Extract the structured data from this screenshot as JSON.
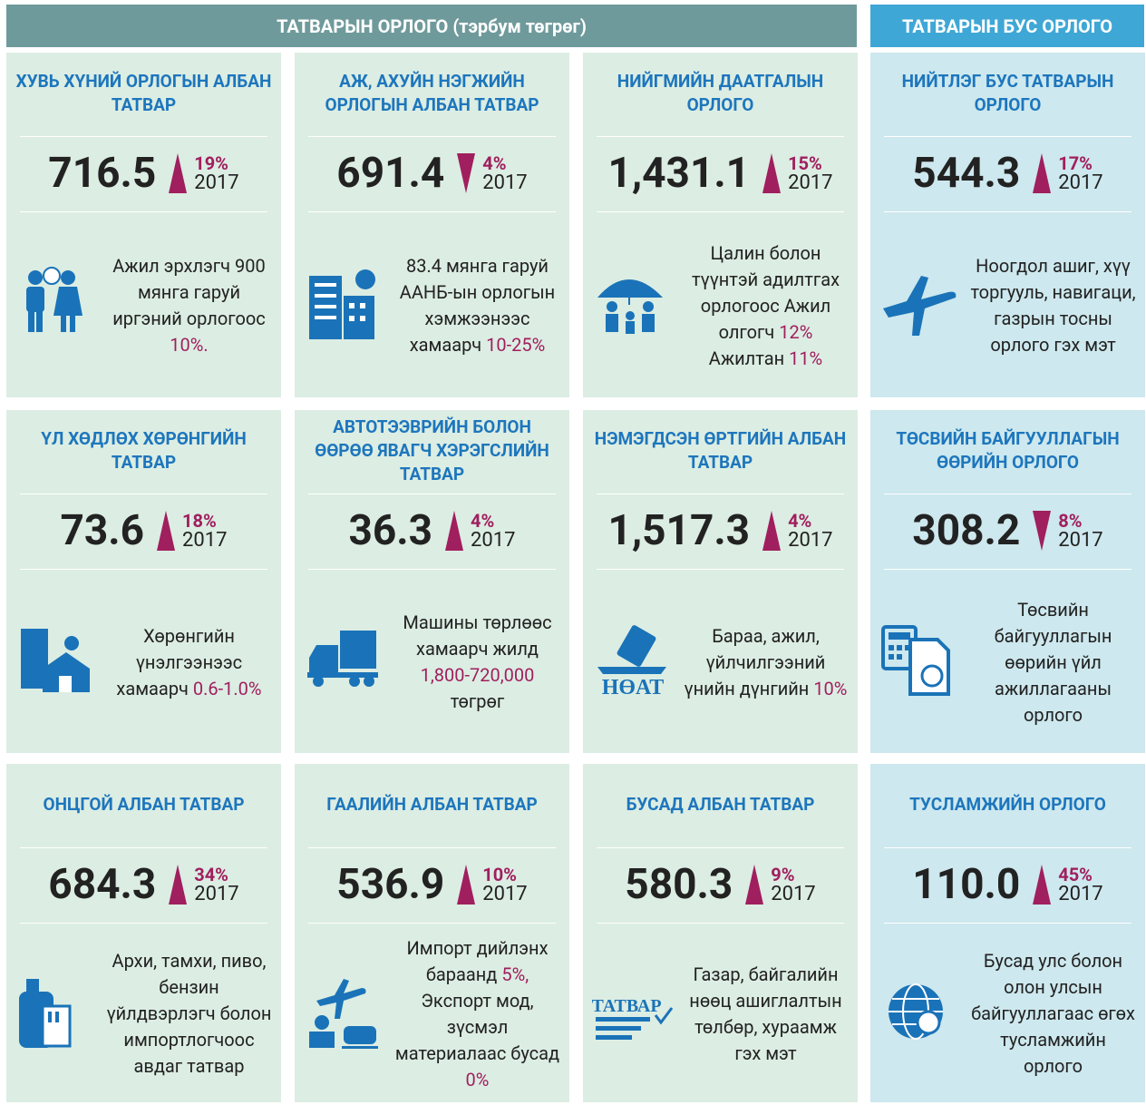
{
  "header": {
    "tax_title": "ТАТВАРЫН ОРЛОГО (тэрбум төгрөг)",
    "nontax_title": "ТАТВАРЫН БУС ОРЛОГО"
  },
  "cards": [
    {
      "title": "ХУВЬ ХҮНИЙ ОРЛОГЫН АЛБАН ТАТВАР",
      "value": "716.5",
      "direction": "up",
      "change": "19%",
      "year": "2017",
      "group": "tax",
      "icon": "people",
      "description": [
        {
          "text": "Ажил эрхлэгч 900 мянга гаруй иргэний орлогоос "
        },
        {
          "text": "10%.",
          "accent": true
        }
      ]
    },
    {
      "title": "АЖ, АХУЙН НЭГЖИЙН ОРЛОГЫН АЛБАН ТАТВАР",
      "value": "691.4",
      "direction": "down",
      "change": "4%",
      "year": "2017",
      "group": "tax",
      "icon": "building",
      "description": [
        {
          "text": "83.4 мянга гаруй ААНБ-ын орлогын хэмжээнээс хамаарч "
        },
        {
          "text": "10-25%",
          "accent": true
        }
      ]
    },
    {
      "title": "НИЙГМИЙН ДААТГАЛЫН ОРЛОГО",
      "value": "1,431.1",
      "direction": "up",
      "change": "15%",
      "year": "2017",
      "group": "tax",
      "icon": "umbrella",
      "description": [
        {
          "text": "Цалин болон түүнтэй адилтгах орлогоос Ажил олгогч "
        },
        {
          "text": "12%",
          "accent": true
        },
        {
          "text": " Ажилтан "
        },
        {
          "text": "11%",
          "accent": true
        }
      ]
    },
    {
      "title": "НИЙТЛЭГ БУС ТАТВАРЫН ОРЛОГО",
      "value": "544.3",
      "direction": "up",
      "change": "17%",
      "year": "2017",
      "group": "nontax",
      "icon": "plane",
      "description": [
        {
          "text": "Ноогдол ашиг, хүү торгууль, навигаци, газрын тосны орлого гэх мэт"
        }
      ]
    },
    {
      "title": "ҮЛ ХӨДЛӨХ ХӨРӨНГИЙН ТАТВАР",
      "value": "73.6",
      "direction": "up",
      "change": "18%",
      "year": "2017",
      "group": "tax",
      "icon": "house",
      "description": [
        {
          "text": "Хөрөнгийн үнэлгээнээс хамаарч "
        },
        {
          "text": "0.6-1.0%",
          "accent": true
        }
      ]
    },
    {
      "title": "АВТОТЭЭВРИЙН БОЛОН ӨӨРӨӨ ЯВАГЧ ХЭРЭГСЛИЙН ТАТВАР",
      "value": "36.3",
      "direction": "up",
      "change": "4%",
      "year": "2017",
      "group": "tax",
      "icon": "truck",
      "description": [
        {
          "text": "Машины төрлөөс хамаарч жилд "
        },
        {
          "text": "1,800-720,000",
          "accent": true
        },
        {
          "text": " төгрөг"
        }
      ]
    },
    {
      "title": "НЭМЭГДСЭН ӨРТГИЙН АЛБАН ТАТВАР",
      "value": "1,517.3",
      "direction": "up",
      "change": "4%",
      "year": "2017",
      "group": "tax",
      "icon": "vat",
      "icon_text": "НӨАТ",
      "description": [
        {
          "text": "Бараа, ажил, үйлчилгээний үнийн дүнгийн "
        },
        {
          "text": "10%",
          "accent": true
        }
      ]
    },
    {
      "title": "ТӨСВИЙН БАЙГУУЛЛАГЫН ӨӨРИЙН ОРЛОГО",
      "value": "308.2",
      "direction": "down",
      "change": "8%",
      "year": "2017",
      "group": "nontax",
      "icon": "calc",
      "description": [
        {
          "text": "Төсвийн байгууллагын өөрийн үйл ажиллагааны орлого"
        }
      ]
    },
    {
      "title": "ОНЦГОЙ АЛБАН ТАТВАР",
      "value": "684.3",
      "direction": "up",
      "change": "34%",
      "year": "2017",
      "group": "tax",
      "icon": "bottle",
      "description": [
        {
          "text": "Архи, тамхи, пиво, бензин үйлдвэрлэгч болон импортлогчоос авдаг татвар"
        }
      ]
    },
    {
      "title": "ГААЛИЙН АЛБАН ТАТВАР",
      "value": "536.9",
      "direction": "up",
      "change": "10%",
      "year": "2017",
      "group": "tax",
      "icon": "customs",
      "description": [
        {
          "text": "Импорт дийлэнх бараанд "
        },
        {
          "text": "5%,",
          "accent": true
        },
        {
          "text": " Экспорт мод, зүсмэл материалаас бусад "
        },
        {
          "text": "0%",
          "accent": true
        }
      ]
    },
    {
      "title": "БУСАД АЛБАН ТАТВАР",
      "value": "580.3",
      "direction": "up",
      "change": "9%",
      "year": "2017",
      "group": "tax",
      "icon": "text",
      "icon_text": "ТАТВАР",
      "description": [
        {
          "text": "Газар, байгалийн нөөц ашиглалтын төлбөр, хураамж гэх мэт"
        }
      ]
    },
    {
      "title": "ТУСЛАМЖИЙН ОРЛОГО",
      "value": "110.0",
      "direction": "up",
      "change": "45%",
      "year": "2017",
      "group": "nontax",
      "icon": "globe",
      "description": [
        {
          "text": "Бусад улс болон олон улсын байгууллагаас өгөх тусламжийн орлого"
        }
      ]
    }
  ]
}
